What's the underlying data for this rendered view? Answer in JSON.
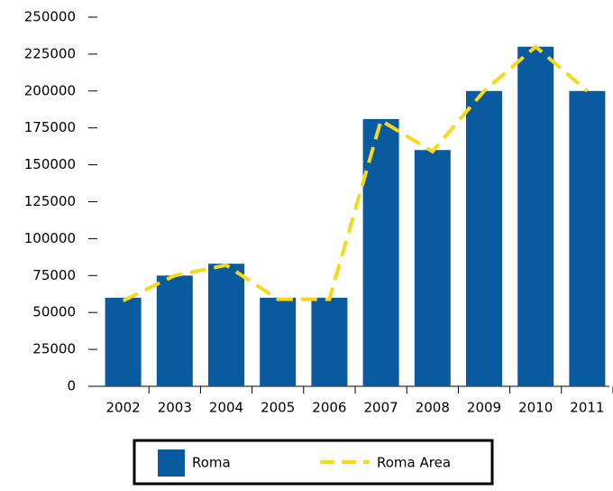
{
  "chart_data": {
    "type": "bar",
    "categories": [
      "2002",
      "2003",
      "2004",
      "2005",
      "2006",
      "2007",
      "2008",
      "2009",
      "2010",
      "2011"
    ],
    "series": [
      {
        "name": "Roma",
        "type": "bar",
        "color": "#0a5aa0",
        "values": [
          60000,
          75000,
          83000,
          60000,
          60000,
          181000,
          160000,
          200000,
          230000,
          200000
        ]
      },
      {
        "name": "Roma Area",
        "type": "line",
        "color": "#f7d917",
        "values": [
          58000,
          75000,
          82000,
          59000,
          59000,
          180000,
          159000,
          200000,
          230000,
          200000
        ]
      }
    ],
    "ylim": [
      0,
      250000
    ],
    "yticks": [
      0,
      25000,
      50000,
      75000,
      100000,
      125000,
      150000,
      175000,
      200000,
      225000,
      250000
    ],
    "legend": "bottom"
  }
}
